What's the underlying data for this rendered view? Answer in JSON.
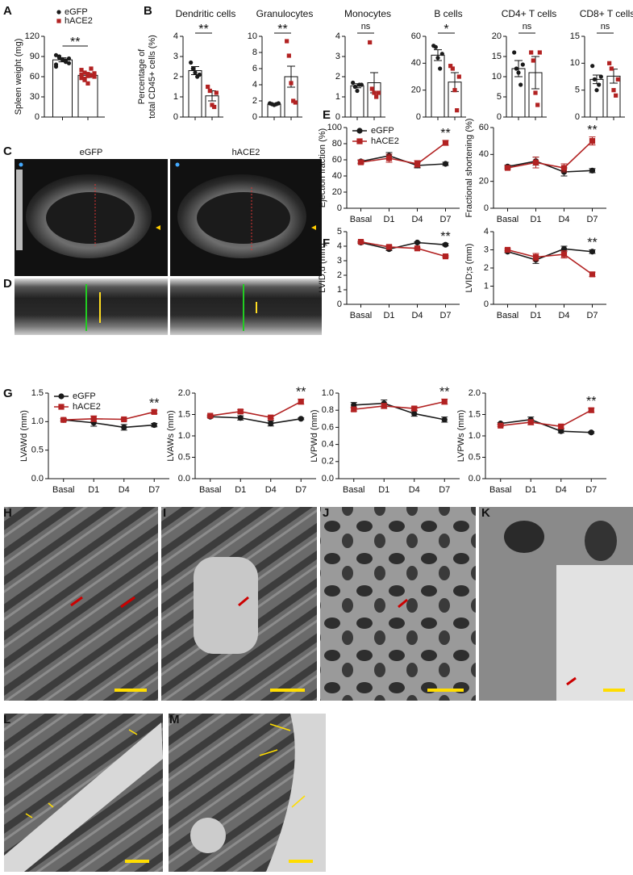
{
  "panel_labels": [
    "A",
    "B",
    "C",
    "D",
    "E",
    "F",
    "G",
    "H",
    "I",
    "J",
    "K",
    "L",
    "M"
  ],
  "echo_labels": [
    "eGFP",
    "hACE2"
  ],
  "chart_data": [
    {
      "type": "bar",
      "ylabel": "Spleen weight (mg)",
      "ylim": [
        0,
        120
      ],
      "yticks": [
        0,
        30,
        60,
        90,
        120
      ],
      "annotation": "**",
      "legend": "top-left",
      "series": [
        {
          "name": "eGFP",
          "color": "#1a1a1a",
          "marker": "circle",
          "values": [
            85
          ],
          "errors": [
            3
          ],
          "points": [
            92,
            88,
            85,
            84,
            80,
            78,
            90,
            86,
            82,
            87,
            75
          ]
        },
        {
          "name": "hACE2",
          "color": "#b22222",
          "marker": "square",
          "values": [
            62
          ],
          "errors": [
            3
          ],
          "points": [
            70,
            66,
            64,
            62,
            60,
            58,
            55,
            50,
            72,
            65,
            63,
            57,
            61
          ]
        }
      ]
    },
    {
      "type": "bar",
      "title": "Dendritic cells",
      "ylabel": [
        "Percentage of",
        "total CD45+ cells (%)"
      ],
      "ylim": [
        0,
        4
      ],
      "yticks": [
        0,
        1,
        2,
        3,
        4
      ],
      "annotation": "**",
      "series": [
        {
          "color": "#1a1a1a",
          "marker": "circle",
          "values": [
            2.3
          ],
          "errors": [
            0.2
          ],
          "points": [
            2.7,
            2.4,
            2.2,
            2.0,
            2.1
          ]
        },
        {
          "color": "#b22222",
          "marker": "square",
          "values": [
            1.05
          ],
          "errors": [
            0.25
          ],
          "points": [
            1.5,
            1.3,
            0.6,
            0.5,
            1.2
          ]
        }
      ]
    },
    {
      "type": "bar",
      "title": "Granulocytes",
      "ylim": [
        0,
        10
      ],
      "yticks": [
        0,
        2,
        4,
        6,
        8,
        10
      ],
      "annotation": "**",
      "series": [
        {
          "color": "#1a1a1a",
          "marker": "circle",
          "values": [
            1.6
          ],
          "errors": [
            0.05
          ],
          "points": [
            1.7,
            1.6,
            1.5,
            1.6,
            1.7
          ]
        },
        {
          "color": "#b22222",
          "marker": "square",
          "values": [
            5.0
          ],
          "errors": [
            1.3
          ],
          "points": [
            9.4,
            7.6,
            4.2,
            2.0,
            1.8
          ]
        }
      ]
    },
    {
      "type": "bar",
      "title": "Monocytes",
      "ylim": [
        0,
        4
      ],
      "yticks": [
        0,
        1,
        2,
        3,
        4
      ],
      "annotation": "ns",
      "series": [
        {
          "color": "#1a1a1a",
          "marker": "circle",
          "values": [
            1.55
          ],
          "errors": [
            0.1
          ],
          "points": [
            1.7,
            1.5,
            1.3,
            1.6,
            1.6
          ]
        },
        {
          "color": "#b22222",
          "marker": "square",
          "values": [
            1.7
          ],
          "errors": [
            0.5
          ],
          "points": [
            3.7,
            1.4,
            1.2,
            1.0,
            1.2
          ]
        }
      ]
    },
    {
      "type": "bar",
      "title": "B cells",
      "ylim": [
        0,
        60
      ],
      "yticks": [
        0,
        20,
        40,
        60
      ],
      "annotation": "*",
      "series": [
        {
          "color": "#1a1a1a",
          "marker": "circle",
          "values": [
            46
          ],
          "errors": [
            4
          ],
          "points": [
            53,
            52,
            44,
            36,
            47
          ]
        },
        {
          "color": "#b22222",
          "marker": "square",
          "values": [
            26
          ],
          "errors": [
            7
          ],
          "points": [
            38,
            36,
            20,
            5,
            30
          ]
        }
      ]
    },
    {
      "type": "bar",
      "title": "CD4+ T cells",
      "ylim": [
        0,
        20
      ],
      "yticks": [
        0,
        5,
        10,
        15,
        20
      ],
      "annotation": "ns",
      "series": [
        {
          "color": "#1a1a1a",
          "marker": "circle",
          "values": [
            12
          ],
          "errors": [
            2
          ],
          "points": [
            16,
            12,
            11,
            8,
            13
          ]
        },
        {
          "color": "#b22222",
          "marker": "square",
          "values": [
            11
          ],
          "errors": [
            4
          ],
          "points": [
            16,
            14,
            6,
            3,
            16
          ]
        }
      ]
    },
    {
      "type": "bar",
      "title": "CD8+ T cells",
      "ylim": [
        0,
        15
      ],
      "yticks": [
        0,
        5,
        10,
        15
      ],
      "annotation": "ns",
      "series": [
        {
          "color": "#1a1a1a",
          "marker": "circle",
          "values": [
            7
          ],
          "errors": [
            0.8
          ],
          "points": [
            9.5,
            7,
            5,
            6,
            7.5
          ]
        },
        {
          "color": "#b22222",
          "marker": "square",
          "values": [
            7.6
          ],
          "errors": [
            1.3
          ],
          "points": [
            10,
            9,
            5,
            4,
            7
          ]
        }
      ]
    },
    {
      "type": "line",
      "ylabel": "Ejection fraction (%)",
      "categories": [
        "Basal",
        "D1",
        "D4",
        "D7"
      ],
      "ylim": [
        0,
        100
      ],
      "yticks": [
        0,
        20,
        40,
        60,
        80,
        100
      ],
      "annotation": "**",
      "legend": "top-left",
      "series": [
        {
          "name": "eGFP",
          "color": "#1a1a1a",
          "marker": "circle",
          "values": [
            58,
            65,
            53,
            55
          ],
          "errors": [
            2,
            4,
            3,
            2
          ]
        },
        {
          "name": "hACE2",
          "color": "#b22222",
          "marker": "square",
          "values": [
            57,
            62,
            55,
            81
          ],
          "errors": [
            2,
            5,
            4,
            3
          ]
        }
      ]
    },
    {
      "type": "line",
      "ylabel": "Fractional shortening  (%)",
      "categories": [
        "Basal",
        "D1",
        "D4",
        "D7"
      ],
      "ylim": [
        0,
        60
      ],
      "yticks": [
        0,
        20,
        40,
        60
      ],
      "annotation": "**",
      "series": [
        {
          "color": "#1a1a1a",
          "marker": "circle",
          "values": [
            31,
            35,
            27,
            28
          ],
          "errors": [
            1,
            3,
            3,
            1.5
          ]
        },
        {
          "color": "#b22222",
          "marker": "square",
          "values": [
            30,
            34,
            30,
            50
          ],
          "errors": [
            1,
            4,
            3,
            3
          ]
        }
      ]
    },
    {
      "type": "line",
      "ylabel": "LVID;d (mm)",
      "categories": [
        "Basal",
        "D1",
        "D4",
        "D7"
      ],
      "ylim": [
        0,
        5
      ],
      "yticks": [
        0,
        1,
        2,
        3,
        4,
        5
      ],
      "annotation": "**",
      "series": [
        {
          "color": "#1a1a1a",
          "marker": "circle",
          "values": [
            4.25,
            3.8,
            4.25,
            4.1
          ],
          "errors": [
            0.05,
            0.1,
            0.05,
            0.08
          ]
        },
        {
          "color": "#b22222",
          "marker": "square",
          "values": [
            4.3,
            3.95,
            3.85,
            3.3
          ],
          "errors": [
            0.05,
            0.1,
            0.05,
            0.05
          ]
        }
      ]
    },
    {
      "type": "line",
      "ylabel": "LVID;s (mm)",
      "categories": [
        "Basal",
        "D1",
        "D4",
        "D7"
      ],
      "ylim": [
        0,
        4
      ],
      "yticks": [
        0,
        1,
        2,
        3,
        4
      ],
      "annotation": "**",
      "series": [
        {
          "color": "#1a1a1a",
          "marker": "circle",
          "values": [
            2.9,
            2.45,
            3.05,
            2.9
          ],
          "errors": [
            0.05,
            0.2,
            0.15,
            0.1
          ]
        },
        {
          "color": "#b22222",
          "marker": "square",
          "values": [
            3.0,
            2.6,
            2.75,
            1.65
          ],
          "errors": [
            0.05,
            0.2,
            0.2,
            0.12
          ]
        }
      ]
    },
    {
      "type": "line",
      "ylabel": "LVAWd (mm)",
      "categories": [
        "Basal",
        "D1",
        "D4",
        "D7"
      ],
      "ylim": [
        0,
        1.5
      ],
      "yticks": [
        {
          "value": 0,
          "label": "0.0"
        },
        0.5,
        {
          "value": 1,
          "label": "1.0"
        },
        1.5
      ],
      "annotation": "**",
      "legend": "top-left",
      "series": [
        {
          "name": "eGFP",
          "color": "#1a1a1a",
          "marker": "circle",
          "values": [
            1.03,
            0.98,
            0.9,
            0.94
          ],
          "errors": [
            0.02,
            0.06,
            0.05,
            0.03
          ]
        },
        {
          "name": "hACE2",
          "color": "#b22222",
          "marker": "square",
          "values": [
            1.03,
            1.05,
            1.04,
            1.17
          ],
          "errors": [
            0.02,
            0.05,
            0.02,
            0.03
          ]
        }
      ]
    },
    {
      "type": "line",
      "ylabel": "LVAWs (mm)",
      "categories": [
        "Basal",
        "D1",
        "D4",
        "D7"
      ],
      "ylim": [
        0,
        2
      ],
      "yticks": [
        {
          "value": 0,
          "label": "0.0"
        },
        0.5,
        {
          "value": 1,
          "label": "1.0"
        },
        1.5,
        {
          "value": 2,
          "label": "2.0"
        }
      ],
      "annotation": "**",
      "series": [
        {
          "color": "#1a1a1a",
          "marker": "circle",
          "values": [
            1.45,
            1.42,
            1.29,
            1.4
          ],
          "errors": [
            0.02,
            0.05,
            0.06,
            0.02
          ]
        },
        {
          "color": "#b22222",
          "marker": "square",
          "values": [
            1.47,
            1.57,
            1.43,
            1.8
          ],
          "errors": [
            0.02,
            0.04,
            0.03,
            0.06
          ]
        }
      ]
    },
    {
      "type": "line",
      "ylabel": "LVPWd (mm)",
      "categories": [
        "Basal",
        "D1",
        "D4",
        "D7"
      ],
      "ylim": [
        0,
        1
      ],
      "yticks": [
        {
          "value": 0,
          "label": "0.0"
        },
        0.2,
        0.4,
        0.6,
        0.8,
        {
          "value": 1,
          "label": "1.0"
        }
      ],
      "annotation": "**",
      "series": [
        {
          "color": "#1a1a1a",
          "marker": "circle",
          "values": [
            0.86,
            0.88,
            0.76,
            0.69
          ],
          "errors": [
            0.03,
            0.04,
            0.03,
            0.03
          ]
        },
        {
          "color": "#b22222",
          "marker": "square",
          "values": [
            0.81,
            0.85,
            0.82,
            0.9
          ],
          "errors": [
            0.02,
            0.03,
            0.02,
            0.03
          ]
        }
      ]
    },
    {
      "type": "line",
      "ylabel": "LVPWs (mm)",
      "categories": [
        "Basal",
        "D1",
        "D4",
        "D7"
      ],
      "ylim": [
        0,
        2
      ],
      "yticks": [
        {
          "value": 0,
          "label": "0.0"
        },
        0.5,
        {
          "value": 1,
          "label": "1.0"
        },
        1.5,
        {
          "value": 2,
          "label": "2.0"
        }
      ],
      "annotation": "**",
      "series": [
        {
          "color": "#1a1a1a",
          "marker": "circle",
          "values": [
            1.29,
            1.38,
            1.11,
            1.08
          ],
          "errors": [
            0.02,
            0.06,
            0.04,
            0.02
          ]
        },
        {
          "color": "#b22222",
          "marker": "square",
          "values": [
            1.24,
            1.32,
            1.22,
            1.6
          ],
          "errors": [
            0.02,
            0.06,
            0.04,
            0.05
          ]
        }
      ]
    }
  ]
}
